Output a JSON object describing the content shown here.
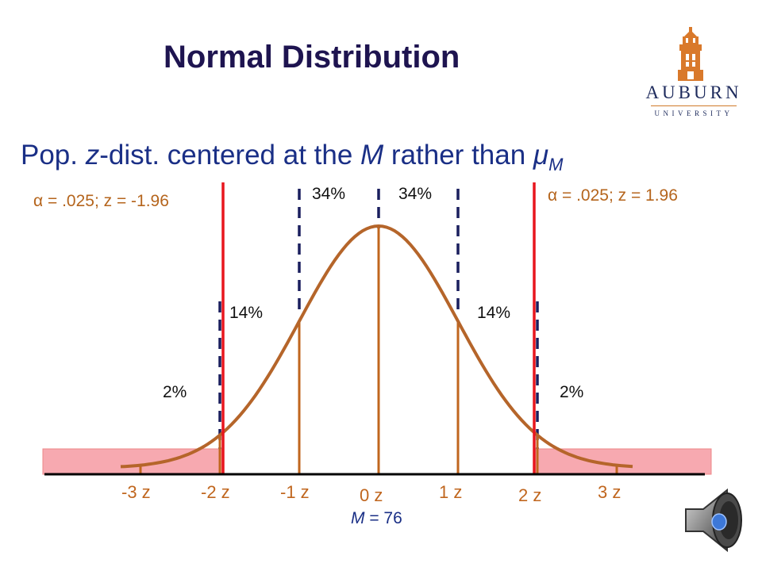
{
  "title": "Normal Distribution",
  "subtitle": {
    "pre": "Pop. ",
    "z": "z",
    "mid": "-dist. centered at the ",
    "M": "M",
    "post": " rather than ",
    "mu": "μ",
    "mu_sub": "M"
  },
  "logo": {
    "name": "AUBURN",
    "sub": "UNIVERSITY"
  },
  "annotations": {
    "left_alpha": "α = .025; z = -1.96",
    "right_alpha": "α = .025; z = 1.96",
    "pct_34_left": "34%",
    "pct_34_right": "34%",
    "pct_14_left": "14%",
    "pct_14_right": "14%",
    "pct_2_left": "2%",
    "pct_2_right": "2%"
  },
  "mean_label": {
    "M": "M",
    "rest": " = 76"
  },
  "chart_data": {
    "type": "area",
    "x": [
      -3,
      -2,
      -1,
      0,
      1,
      2,
      3
    ],
    "tick_labels": [
      "-3 z",
      "-2 z",
      "-1 z",
      "0 z",
      "1 z",
      "2 z",
      "3 z"
    ],
    "critical_values": [
      -1.96,
      1.96
    ],
    "region_percents": {
      "center_each_side": 34,
      "shoulder_each_side": 14,
      "tail_each_side": 2
    },
    "alpha_each_tail": 0.025,
    "shaded_tails": true,
    "colors": {
      "curve": "#b5652a",
      "critical": "#e8161e",
      "shade": "#f7a9b0",
      "axis": "#000000",
      "ticks": "#c0661e"
    }
  },
  "icons": {
    "logo": "auburn-tower-logo",
    "speaker": "speaker-icon"
  }
}
